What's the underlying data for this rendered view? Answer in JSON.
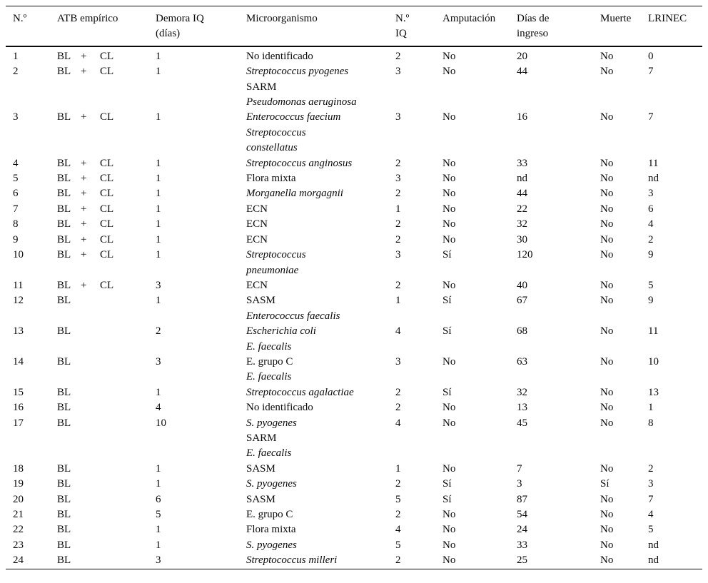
{
  "table": {
    "columns": [
      {
        "line1": "N.º",
        "line2": ""
      },
      {
        "line1": "ATB empírico",
        "line2": ""
      },
      {
        "line1": "Demora IQ",
        "line2": "(días)"
      },
      {
        "line1": "Microorganismo",
        "line2": ""
      },
      {
        "line1": "N.º",
        "line2": "IQ"
      },
      {
        "line1": "Amputación",
        "line2": ""
      },
      {
        "line1": "Días de",
        "line2": "ingreso"
      },
      {
        "line1": "Muerte",
        "line2": ""
      },
      {
        "line1": "LRINEC",
        "line2": ""
      }
    ],
    "rows": [
      {
        "num": "1",
        "atb": [
          "BL",
          "+",
          "CL"
        ],
        "demora": "1",
        "micro": [
          {
            "text": "No identificado",
            "italic": false
          }
        ],
        "niq": "2",
        "amputacion": "No",
        "dias_ingreso": "20",
        "muerte": "No",
        "lrinec": "0"
      },
      {
        "num": "2",
        "atb": [
          "BL",
          "+",
          "CL"
        ],
        "demora": "1",
        "micro": [
          {
            "text": "Streptococcus pyogenes",
            "italic": true
          },
          {
            "text": "SARM",
            "italic": false
          },
          {
            "text": "Pseudomonas aeruginosa",
            "italic": true
          }
        ],
        "niq": "3",
        "amputacion": "No",
        "dias_ingreso": "44",
        "muerte": "No",
        "lrinec": "7"
      },
      {
        "num": "3",
        "atb": [
          "BL",
          "+",
          "CL"
        ],
        "demora": "1",
        "micro": [
          {
            "text": "Enterococcus faecium",
            "italic": true
          },
          {
            "text": "Streptococcus",
            "italic": true
          },
          {
            "text": "constellatus",
            "italic": true
          }
        ],
        "niq": "3",
        "amputacion": "No",
        "dias_ingreso": "16",
        "muerte": "No",
        "lrinec": "7"
      },
      {
        "num": "4",
        "atb": [
          "BL",
          "+",
          "CL"
        ],
        "demora": "1",
        "micro": [
          {
            "text": "Streptococcus anginosus",
            "italic": true
          }
        ],
        "niq": "2",
        "amputacion": "No",
        "dias_ingreso": "33",
        "muerte": "No",
        "lrinec": "11"
      },
      {
        "num": "5",
        "atb": [
          "BL",
          "+",
          "CL"
        ],
        "demora": "1",
        "micro": [
          {
            "text": "Flora mixta",
            "italic": false
          }
        ],
        "niq": "3",
        "amputacion": "No",
        "dias_ingreso": "nd",
        "muerte": "No",
        "lrinec": "nd"
      },
      {
        "num": "6",
        "atb": [
          "BL",
          "+",
          "CL"
        ],
        "demora": "1",
        "micro": [
          {
            "text": "Morganella morgagnii",
            "italic": true
          }
        ],
        "niq": "2",
        "amputacion": "No",
        "dias_ingreso": "44",
        "muerte": "No",
        "lrinec": "3"
      },
      {
        "num": "7",
        "atb": [
          "BL",
          "+",
          "CL"
        ],
        "demora": "1",
        "micro": [
          {
            "text": "ECN",
            "italic": false
          }
        ],
        "niq": "1",
        "amputacion": "No",
        "dias_ingreso": "22",
        "muerte": "No",
        "lrinec": "6"
      },
      {
        "num": "8",
        "atb": [
          "BL",
          "+",
          "CL"
        ],
        "demora": "1",
        "micro": [
          {
            "text": "ECN",
            "italic": false
          }
        ],
        "niq": "2",
        "amputacion": "No",
        "dias_ingreso": "32",
        "muerte": "No",
        "lrinec": "4"
      },
      {
        "num": "9",
        "atb": [
          "BL",
          "+",
          "CL"
        ],
        "demora": "1",
        "micro": [
          {
            "text": "ECN",
            "italic": false
          }
        ],
        "niq": "2",
        "amputacion": "No",
        "dias_ingreso": "30",
        "muerte": "No",
        "lrinec": "2"
      },
      {
        "num": "10",
        "atb": [
          "BL",
          "+",
          "CL"
        ],
        "demora": "1",
        "micro": [
          {
            "text": "Streptococcus",
            "italic": true
          },
          {
            "text": "pneumoniae",
            "italic": true
          }
        ],
        "niq": "3",
        "amputacion": "Sí",
        "dias_ingreso": "120",
        "muerte": "No",
        "lrinec": "9"
      },
      {
        "num": "11",
        "atb": [
          "BL",
          "+",
          "CL"
        ],
        "demora": "3",
        "micro": [
          {
            "text": "ECN",
            "italic": false
          }
        ],
        "niq": "2",
        "amputacion": "No",
        "dias_ingreso": "40",
        "muerte": "No",
        "lrinec": "5"
      },
      {
        "num": "12",
        "atb": [
          "BL",
          "",
          ""
        ],
        "demora": "1",
        "micro": [
          {
            "text": "SASM",
            "italic": false
          },
          {
            "text": "Enterococcus faecalis",
            "italic": true
          }
        ],
        "niq": "1",
        "amputacion": "Sí",
        "dias_ingreso": "67",
        "muerte": "No",
        "lrinec": "9"
      },
      {
        "num": "13",
        "atb": [
          "BL",
          "",
          ""
        ],
        "demora": "2",
        "micro": [
          {
            "text": "Escherichia coli",
            "italic": true
          },
          {
            "text": "E. faecalis",
            "italic": true
          }
        ],
        "niq": "4",
        "amputacion": "Sí",
        "dias_ingreso": "68",
        "muerte": "No",
        "lrinec": "11"
      },
      {
        "num": "14",
        "atb": [
          "BL",
          "",
          ""
        ],
        "demora": "3",
        "micro": [
          {
            "text": "E. grupo C",
            "italic": false
          },
          {
            "text": "E. faecalis",
            "italic": true
          }
        ],
        "niq": "3",
        "amputacion": "No",
        "dias_ingreso": "63",
        "muerte": "No",
        "lrinec": "10"
      },
      {
        "num": "15",
        "atb": [
          "BL",
          "",
          ""
        ],
        "demora": "1",
        "micro": [
          {
            "text": "Streptococcus agalactiae",
            "italic": true
          }
        ],
        "niq": "2",
        "amputacion": "Sí",
        "dias_ingreso": "32",
        "muerte": "No",
        "lrinec": "13"
      },
      {
        "num": "16",
        "atb": [
          "BL",
          "",
          ""
        ],
        "demora": "4",
        "micro": [
          {
            "text": "No identificado",
            "italic": false
          }
        ],
        "niq": "2",
        "amputacion": "No",
        "dias_ingreso": "13",
        "muerte": "No",
        "lrinec": "1"
      },
      {
        "num": "17",
        "atb": [
          "BL",
          "",
          ""
        ],
        "demora": "10",
        "micro": [
          {
            "text": "S. pyogenes",
            "italic": true
          },
          {
            "text": "SARM",
            "italic": false
          },
          {
            "text": "E. faecalis",
            "italic": true
          }
        ],
        "niq": "4",
        "amputacion": "No",
        "dias_ingreso": "45",
        "muerte": "No",
        "lrinec": "8"
      },
      {
        "num": "18",
        "atb": [
          "BL",
          "",
          ""
        ],
        "demora": "1",
        "micro": [
          {
            "text": "SASM",
            "italic": false
          }
        ],
        "niq": "1",
        "amputacion": "No",
        "dias_ingreso": "7",
        "muerte": "No",
        "lrinec": "2"
      },
      {
        "num": "19",
        "atb": [
          "BL",
          "",
          ""
        ],
        "demora": "1",
        "micro": [
          {
            "text": "S. pyogenes",
            "italic": true
          }
        ],
        "niq": "2",
        "amputacion": "Sí",
        "dias_ingreso": "3",
        "muerte": "Sí",
        "lrinec": "3"
      },
      {
        "num": "20",
        "atb": [
          "BL",
          "",
          ""
        ],
        "demora": "6",
        "micro": [
          {
            "text": "SASM",
            "italic": false
          }
        ],
        "niq": "5",
        "amputacion": "Sí",
        "dias_ingreso": "87",
        "muerte": "No",
        "lrinec": "7"
      },
      {
        "num": "21",
        "atb": [
          "BL",
          "",
          ""
        ],
        "demora": "5",
        "micro": [
          {
            "text": "E. grupo C",
            "italic": false
          }
        ],
        "niq": "2",
        "amputacion": "No",
        "dias_ingreso": "54",
        "muerte": "No",
        "lrinec": "4"
      },
      {
        "num": "22",
        "atb": [
          "BL",
          "",
          ""
        ],
        "demora": "1",
        "micro": [
          {
            "text": "Flora mixta",
            "italic": false
          }
        ],
        "niq": "4",
        "amputacion": "No",
        "dias_ingreso": "24",
        "muerte": "No",
        "lrinec": "5"
      },
      {
        "num": "23",
        "atb": [
          "BL",
          "",
          ""
        ],
        "demora": "1",
        "micro": [
          {
            "text": "S. pyogenes",
            "italic": true
          }
        ],
        "niq": "5",
        "amputacion": "No",
        "dias_ingreso": "33",
        "muerte": "No",
        "lrinec": "nd"
      },
      {
        "num": "24",
        "atb": [
          "BL",
          "",
          ""
        ],
        "demora": "3",
        "micro": [
          {
            "text": "Streptococcus milleri",
            "italic": true
          }
        ],
        "niq": "2",
        "amputacion": "No",
        "dias_ingreso": "25",
        "muerte": "No",
        "lrinec": "nd"
      }
    ]
  }
}
